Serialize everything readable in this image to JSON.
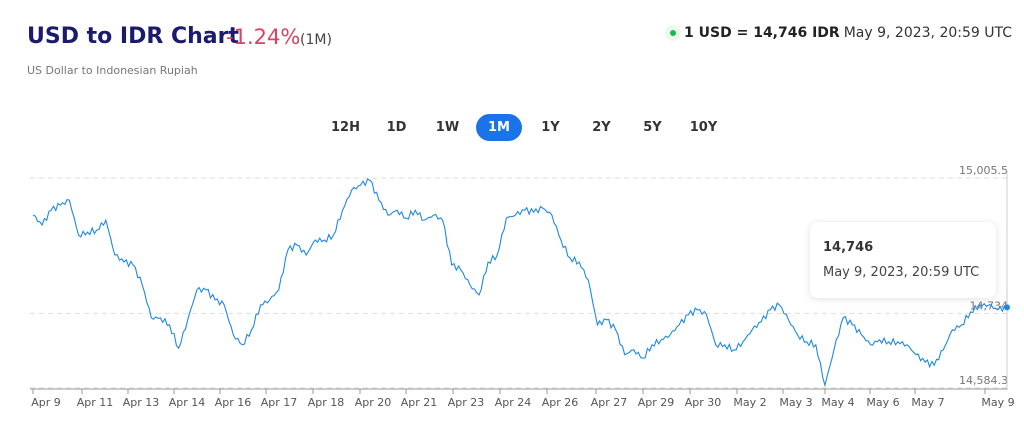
{
  "header": {
    "title": "USD to IDR Chart",
    "change": "-1.24%",
    "period": "(1M)",
    "subtitle": "US Dollar to Indonesian Rupiah"
  },
  "rate": {
    "pair": "1 USD = 14,746 IDR",
    "timestamp": "May 9, 2023, 20:59 UTC",
    "status_color": "#1db954"
  },
  "tabs": [
    {
      "label": "12H"
    },
    {
      "label": "1D"
    },
    {
      "label": "1W"
    },
    {
      "label": "1M",
      "active": true
    },
    {
      "label": "1Y"
    },
    {
      "label": "2Y"
    },
    {
      "label": "5Y"
    },
    {
      "label": "10Y"
    }
  ],
  "tooltip": {
    "value": "14,746",
    "date": "May 9, 2023, 20:59 UTC"
  },
  "chart_data": {
    "type": "line",
    "title": "",
    "xlabel": "",
    "ylabel": "",
    "ylim": [
      14584.3,
      15005.5
    ],
    "y_ticks": [
      "15,005.5",
      "14,734",
      "14,584.3"
    ],
    "x_ticks": [
      "Apr 9",
      "Apr 11",
      "Apr 13",
      "Apr 14",
      "Apr 16",
      "Apr 17",
      "Apr 18",
      "Apr 20",
      "Apr 21",
      "Apr 23",
      "Apr 24",
      "Apr 26",
      "Apr 27",
      "Apr 29",
      "Apr 30",
      "May 2",
      "May 3",
      "May 4",
      "May 6",
      "May 7",
      "May 9"
    ],
    "line_color": "#1e88e5",
    "values": [
      14931,
      14911,
      14941,
      14951,
      14961,
      14891,
      14897,
      14901,
      14921,
      14851,
      14837,
      14831,
      14791,
      14725,
      14725,
      14711,
      14664,
      14721,
      14781,
      14781,
      14761,
      14751,
      14691,
      14671,
      14701,
      14751,
      14761,
      14781,
      14861,
      14871,
      14851,
      14881,
      14881,
      14891,
      14941,
      14981,
      14991,
      15001,
      14961,
      14931,
      14941,
      14925,
      14941,
      14921,
      14931,
      14921,
      14831,
      14821,
      14791,
      14771,
      14837,
      14851,
      14925,
      14931,
      14941,
      14937,
      14945,
      14931,
      14881,
      14845,
      14837,
      14801,
      14711,
      14721,
      14701,
      14651,
      14661,
      14644,
      14671,
      14681,
      14691,
      14711,
      14731,
      14741,
      14731,
      14671,
      14671,
      14661,
      14677,
      14701,
      14717,
      14741,
      14751,
      14721,
      14691,
      14677,
      14671,
      14590,
      14661,
      14725,
      14711,
      14691,
      14671,
      14681,
      14677,
      14677,
      14671,
      14651,
      14636,
      14630,
      14661,
      14701,
      14711,
      14737,
      14751,
      14751,
      14741,
      14746
    ]
  }
}
